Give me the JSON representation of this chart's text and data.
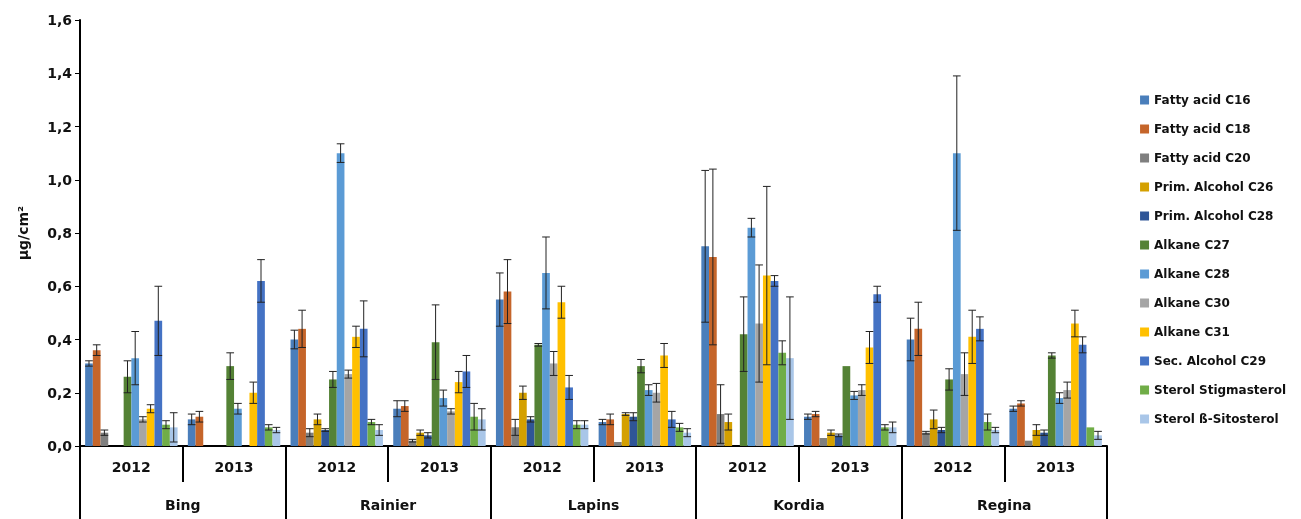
{
  "chart_data": {
    "type": "bar",
    "ylabel": "μg/cm²",
    "categories": [
      "2012",
      "2013",
      "2012",
      "2013",
      "2012",
      "2013",
      "2012",
      "2013",
      "2012",
      "2013"
    ],
    "annotations": [
      "Bing",
      "Rainier",
      "Lapins",
      "Kordia",
      "Regina"
    ],
    "ylim": [
      0,
      1.6
    ],
    "yticks": [
      {
        "value": 0,
        "label": "0,0"
      },
      {
        "value": 0.2,
        "label": "0,2"
      },
      {
        "value": 0.4,
        "label": "0,4"
      },
      {
        "value": 0.6,
        "label": "0,6"
      },
      {
        "value": 0.8,
        "label": "0,8"
      },
      {
        "value": 1.0,
        "label": "1,0"
      },
      {
        "value": 1.2,
        "label": "1,2"
      },
      {
        "value": 1.4,
        "label": "1,4"
      },
      {
        "value": 1.6,
        "label": "1,6"
      }
    ],
    "legend": "right",
    "series": [
      {
        "name": "Fatty acid C16",
        "color": "#4a7ebb",
        "values": [
          0.31,
          0.1,
          0.4,
          0.14,
          0.55,
          0.09,
          0.75,
          0.11,
          0.4,
          0.14
        ],
        "errors": [
          0.01,
          0.02,
          0.035,
          0.03,
          0.1,
          0.01,
          0.285,
          0.01,
          0.08,
          0.01
        ]
      },
      {
        "name": "Fatty acid C18",
        "color": "#c5652a",
        "values": [
          0.36,
          0.11,
          0.44,
          0.15,
          0.58,
          0.1,
          0.71,
          0.12,
          0.44,
          0.16
        ],
        "errors": [
          0.02,
          0.02,
          0.07,
          0.02,
          0.12,
          0.02,
          0.33,
          0.01,
          0.1,
          0.01
        ]
      },
      {
        "name": "Fatty acid C20",
        "color": "#7f7f7f",
        "values": [
          0.05,
          null,
          0.05,
          0.02,
          0.07,
          0.015,
          0.12,
          0.03,
          0.05,
          0.02
        ],
        "errors": [
          0.01,
          null,
          0.015,
          0.005,
          0.03,
          null,
          0.11,
          null,
          0.005,
          null
        ]
      },
      {
        "name": "Prim. Alcohol C26",
        "color": "#d4a000",
        "values": [
          null,
          null,
          0.1,
          0.05,
          0.2,
          0.12,
          0.09,
          0.05,
          0.1,
          0.06
        ],
        "errors": [
          null,
          null,
          0.02,
          0.01,
          0.025,
          0.005,
          0.03,
          0.01,
          0.035,
          0.02
        ]
      },
      {
        "name": "Prim. Alcohol C28",
        "color": "#2f5597",
        "values": [
          null,
          null,
          0.06,
          0.04,
          0.1,
          0.11,
          null,
          0.04,
          0.06,
          0.05
        ],
        "errors": [
          null,
          null,
          0.005,
          0.01,
          0.01,
          0.015,
          null,
          0.005,
          0.01,
          0.01
        ]
      },
      {
        "name": "Alkane C27",
        "color": "#548235",
        "values": [
          0.26,
          0.3,
          0.25,
          0.39,
          0.38,
          0.3,
          0.42,
          0.3,
          0.25,
          0.34
        ],
        "errors": [
          0.06,
          0.05,
          0.03,
          0.14,
          0.005,
          0.025,
          0.14,
          null,
          0.04,
          0.01
        ]
      },
      {
        "name": "Alkane C28",
        "color": "#5b9bd5",
        "values": [
          0.33,
          0.14,
          1.1,
          0.18,
          0.65,
          0.21,
          0.82,
          0.19,
          1.1,
          0.18
        ],
        "errors": [
          0.1,
          0.02,
          0.035,
          0.03,
          0.135,
          0.02,
          0.035,
          0.015,
          0.29,
          0.02
        ]
      },
      {
        "name": "Alkane C30",
        "color": "#a5a5a5",
        "values": [
          0.1,
          null,
          0.27,
          0.13,
          0.31,
          0.2,
          0.46,
          0.21,
          0.27,
          0.21
        ],
        "errors": [
          0.01,
          null,
          0.015,
          0.01,
          0.045,
          0.035,
          0.22,
          0.02,
          0.08,
          0.03
        ]
      },
      {
        "name": "Alkane C31",
        "color": "#ffc000",
        "values": [
          0.14,
          0.2,
          0.41,
          0.24,
          0.54,
          0.34,
          0.64,
          0.37,
          0.41,
          0.46
        ],
        "errors": [
          0.015,
          0.04,
          0.04,
          0.04,
          0.06,
          0.045,
          0.335,
          0.06,
          0.1,
          0.05
        ]
      },
      {
        "name": "Sec. Alcohol C29",
        "color": "#4472c4",
        "values": [
          0.47,
          0.62,
          0.44,
          0.28,
          0.22,
          0.1,
          0.62,
          0.57,
          0.44,
          0.38
        ],
        "errors": [
          0.13,
          0.08,
          0.105,
          0.06,
          0.045,
          0.03,
          0.02,
          0.03,
          0.045,
          0.03
        ]
      },
      {
        "name": "Sterol Stigmasterol",
        "color": "#70ad47",
        "values": [
          0.08,
          0.07,
          0.09,
          0.11,
          0.08,
          0.07,
          0.35,
          0.07,
          0.09,
          0.07
        ],
        "errors": [
          0.015,
          0.01,
          0.01,
          0.05,
          0.015,
          0.015,
          0.045,
          0.01,
          0.03,
          null
        ]
      },
      {
        "name": "Sterol ß-Sitosterol",
        "color": "#a9c6e8",
        "values": [
          0.07,
          0.06,
          0.06,
          0.1,
          0.08,
          0.05,
          0.33,
          0.07,
          0.06,
          0.04
        ],
        "errors": [
          0.055,
          0.01,
          0.02,
          0.04,
          0.015,
          0.015,
          0.23,
          0.02,
          0.01,
          0.015
        ]
      }
    ]
  }
}
